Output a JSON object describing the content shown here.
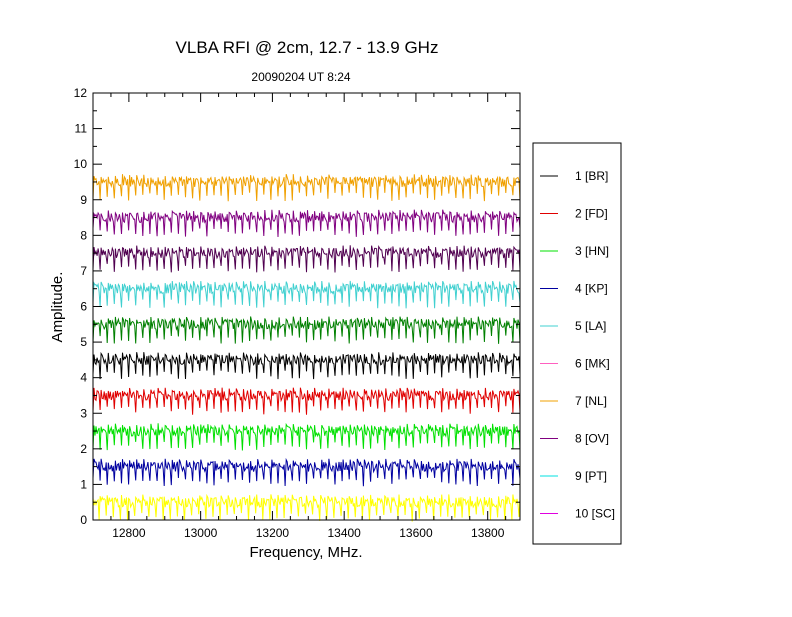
{
  "chart_data": {
    "type": "line",
    "title": "VLBA RFI @ 2cm, 12.7 - 13.9 GHz",
    "subtitle": "20090204   UT 8:24",
    "xlabel": "Frequency, MHz.",
    "ylabel": "Amplitude.",
    "xlim": [
      12700,
      13890
    ],
    "ylim": [
      0,
      12
    ],
    "x_ticks": [
      12800,
      13000,
      13200,
      13400,
      13600,
      13800
    ],
    "y_ticks": [
      0,
      1,
      2,
      3,
      4,
      5,
      6,
      7,
      8,
      9,
      10,
      11,
      12
    ],
    "grid": false,
    "legend_position": "right",
    "series": [
      {
        "name": "1 [BR]",
        "color": "#000000",
        "base": 4.5
      },
      {
        "name": "2 [FD]",
        "color": "#e00000",
        "base": 3.5
      },
      {
        "name": "3 [HN]",
        "color": "#00e000",
        "base": 2.5
      },
      {
        "name": "4 [KP]",
        "color": "#0000a0",
        "base": 1.5
      },
      {
        "name": "5 [LA]",
        "color": "#40d0d0",
        "base": 6.5
      },
      {
        "name": "6 [MK]",
        "color": "#ff60c0",
        "base": null
      },
      {
        "name": "7 [NL]",
        "color": "#f0a000",
        "base": 9.5
      },
      {
        "name": "8 [OV]",
        "color": "#800080",
        "base": 8.5
      },
      {
        "name": "9 [PT]",
        "color": "#00e0e0",
        "base": null
      },
      {
        "name": "10 [SC]",
        "color": "#e000e0",
        "base": null
      },
      {
        "name": "",
        "color": "#500050",
        "base": 7.5
      },
      {
        "name": "",
        "color": "#008000",
        "base": 5.5
      },
      {
        "name": "",
        "color": "#ffff00",
        "base": 0.5
      }
    ]
  }
}
